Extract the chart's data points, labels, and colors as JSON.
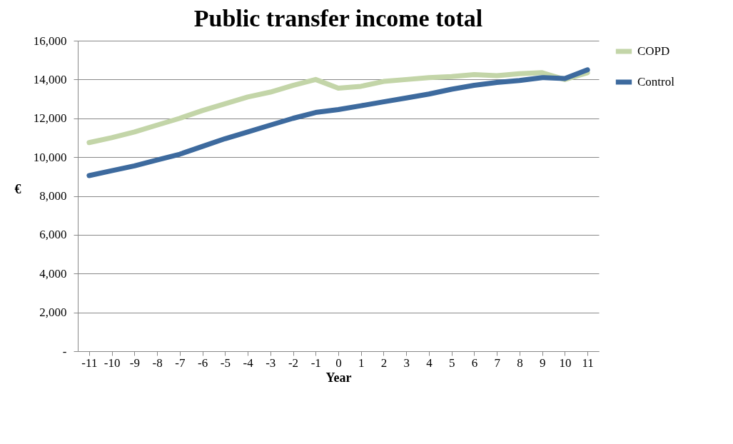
{
  "chart_data": {
    "type": "line",
    "title": "Public transfer income total",
    "xlabel": "Year",
    "ylabel": "€",
    "categories": [
      "-11",
      "-10",
      "-9",
      "-8",
      "-7",
      "-6",
      "-5",
      "-4",
      "-3",
      "-2",
      "-1",
      "0",
      "1",
      "2",
      "3",
      "4",
      "5",
      "6",
      "7",
      "8",
      "9",
      "10",
      "11"
    ],
    "series": [
      {
        "name": "COPD",
        "color": "#c3d5a8",
        "values": [
          10750,
          11000,
          11300,
          11650,
          12000,
          12400,
          12750,
          13100,
          13350,
          13700,
          14000,
          13550,
          13650,
          13900,
          14000,
          14100,
          14150,
          14250,
          14200,
          14300,
          14350,
          14000,
          14350
        ]
      },
      {
        "name": "Control",
        "color": "#3d6a9e",
        "values": [
          9050,
          9300,
          9550,
          9850,
          10150,
          10550,
          10950,
          11300,
          11650,
          12000,
          12300,
          12450,
          12650,
          12850,
          13050,
          13250,
          13500,
          13700,
          13850,
          13950,
          14100,
          14050,
          14500
        ]
      }
    ],
    "ylim": [
      0,
      16000
    ],
    "yticks": [
      {
        "value": 0,
        "label": "-"
      },
      {
        "value": 2000,
        "label": "2,000"
      },
      {
        "value": 4000,
        "label": "4,000"
      },
      {
        "value": 6000,
        "label": "6,000"
      },
      {
        "value": 8000,
        "label": "8,000"
      },
      {
        "value": 10000,
        "label": "10,000"
      },
      {
        "value": 12000,
        "label": "12,000"
      },
      {
        "value": 14000,
        "label": "14,000"
      },
      {
        "value": 16000,
        "label": "16,000"
      }
    ],
    "grid": "y",
    "legend": "right",
    "marker": "none",
    "line_style": "solid"
  }
}
